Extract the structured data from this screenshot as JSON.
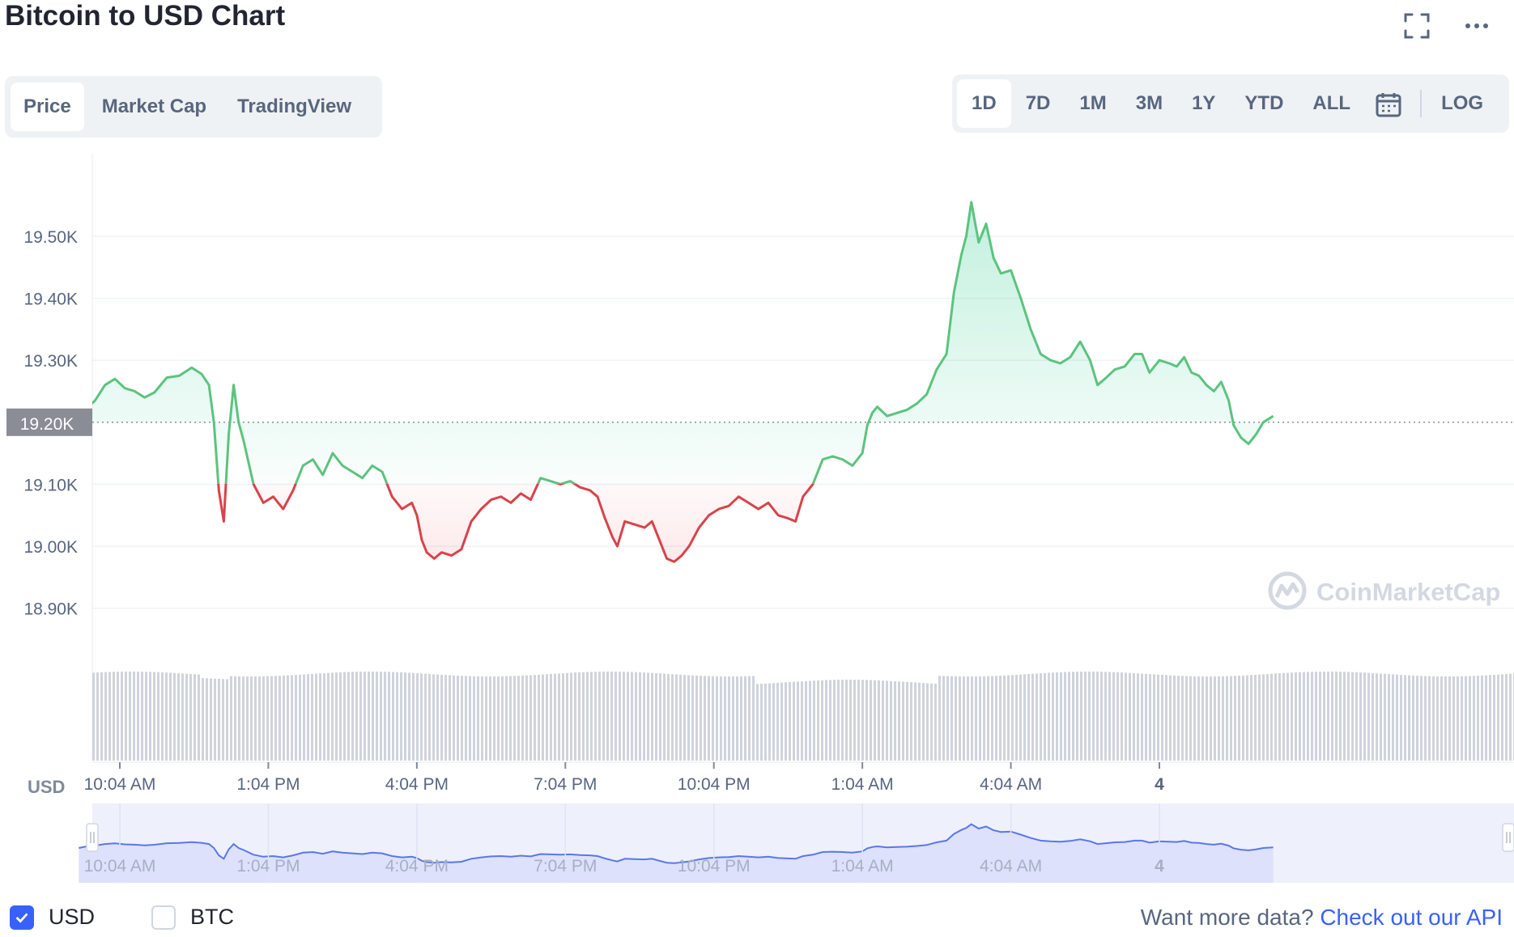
{
  "header": {
    "title": "Bitcoin to USD Chart"
  },
  "icons": {
    "fullscreen": "fullscreen-icon",
    "more": "more-options-icon",
    "calendar": "calendar-icon",
    "check": "check-icon",
    "handle": "range-handle-icon",
    "logo": "coinmarketcap-logo-icon"
  },
  "type_tabs": [
    {
      "label": "Price",
      "active": true
    },
    {
      "label": "Market Cap",
      "active": false
    },
    {
      "label": "TradingView",
      "active": false
    }
  ],
  "range_tabs": [
    {
      "label": "1D",
      "active": true
    },
    {
      "label": "7D",
      "active": false
    },
    {
      "label": "1M",
      "active": false
    },
    {
      "label": "3M",
      "active": false
    },
    {
      "label": "1Y",
      "active": false
    },
    {
      "label": "YTD",
      "active": false
    },
    {
      "label": "ALL",
      "active": false
    }
  ],
  "log_label": "LOG",
  "watermark": "CoinMarketCap",
  "colors": {
    "up": "#16c784",
    "down": "#ea3943",
    "line_up": "#5cc37e",
    "line_down": "#d9434a",
    "accent": "#3861fb",
    "navigator": "#e8ebfd"
  },
  "chart_data": {
    "type": "line",
    "currency_label": "USD",
    "baseline": 19200,
    "baseline_label": "19.20K",
    "ylim": [
      18850,
      19620
    ],
    "yticks": [
      {
        "v": 18900,
        "label": "18.90K"
      },
      {
        "v": 19000,
        "label": "19.00K"
      },
      {
        "v": 19100,
        "label": "19.10K"
      },
      {
        "v": 19200,
        "label": "19.20K"
      },
      {
        "v": 19300,
        "label": "19.30K"
      },
      {
        "v": 19400,
        "label": "19.40K"
      },
      {
        "v": 19500,
        "label": "19.50K"
      }
    ],
    "xticks": [
      {
        "t": 1.0,
        "label": "10:04 AM"
      },
      {
        "t": 4.0,
        "label": "1:04 PM"
      },
      {
        "t": 7.0,
        "label": "4:04 PM"
      },
      {
        "t": 10.0,
        "label": "7:04 PM"
      },
      {
        "t": 13.0,
        "label": "10:04 PM"
      },
      {
        "t": 16.0,
        "label": "1:04 AM"
      },
      {
        "t": 19.0,
        "label": "4:04 AM"
      },
      {
        "t": 22.0,
        "label": "4"
      }
    ],
    "series": [
      {
        "values": [
          [
            0.17,
            19200
          ],
          [
            0.3,
            19220
          ],
          [
            0.5,
            19235
          ],
          [
            0.7,
            19260
          ],
          [
            0.9,
            19270
          ],
          [
            1.1,
            19255
          ],
          [
            1.3,
            19250
          ],
          [
            1.5,
            19240
          ],
          [
            1.7,
            19248
          ],
          [
            1.95,
            19272
          ],
          [
            2.2,
            19275
          ],
          [
            2.45,
            19288
          ],
          [
            2.65,
            19278
          ],
          [
            2.8,
            19260
          ],
          [
            2.9,
            19200
          ],
          [
            3.0,
            19090
          ],
          [
            3.1,
            19040
          ],
          [
            3.2,
            19180
          ],
          [
            3.3,
            19260
          ],
          [
            3.4,
            19200
          ],
          [
            3.5,
            19170
          ],
          [
            3.7,
            19100
          ],
          [
            3.9,
            19070
          ],
          [
            4.1,
            19080
          ],
          [
            4.3,
            19060
          ],
          [
            4.5,
            19090
          ],
          [
            4.7,
            19130
          ],
          [
            4.9,
            19140
          ],
          [
            5.1,
            19115
          ],
          [
            5.3,
            19150
          ],
          [
            5.5,
            19130
          ],
          [
            5.7,
            19120
          ],
          [
            5.9,
            19110
          ],
          [
            6.1,
            19130
          ],
          [
            6.3,
            19120
          ],
          [
            6.5,
            19080
          ],
          [
            6.7,
            19060
          ],
          [
            6.9,
            19070
          ],
          [
            7.0,
            19050
          ],
          [
            7.1,
            19010
          ],
          [
            7.2,
            18990
          ],
          [
            7.35,
            18980
          ],
          [
            7.5,
            18990
          ],
          [
            7.7,
            18985
          ],
          [
            7.9,
            18995
          ],
          [
            8.1,
            19040
          ],
          [
            8.3,
            19060
          ],
          [
            8.5,
            19075
          ],
          [
            8.7,
            19080
          ],
          [
            8.9,
            19070
          ],
          [
            9.1,
            19085
          ],
          [
            9.3,
            19075
          ],
          [
            9.5,
            19110
          ],
          [
            9.7,
            19105
          ],
          [
            9.9,
            19100
          ],
          [
            10.1,
            19105
          ],
          [
            10.3,
            19095
          ],
          [
            10.5,
            19090
          ],
          [
            10.65,
            19080
          ],
          [
            10.8,
            19045
          ],
          [
            10.95,
            19015
          ],
          [
            11.05,
            19000
          ],
          [
            11.2,
            19040
          ],
          [
            11.4,
            19035
          ],
          [
            11.6,
            19030
          ],
          [
            11.75,
            19040
          ],
          [
            11.9,
            19010
          ],
          [
            12.05,
            18980
          ],
          [
            12.2,
            18975
          ],
          [
            12.35,
            18985
          ],
          [
            12.5,
            19000
          ],
          [
            12.7,
            19030
          ],
          [
            12.9,
            19050
          ],
          [
            13.1,
            19060
          ],
          [
            13.3,
            19065
          ],
          [
            13.5,
            19080
          ],
          [
            13.7,
            19070
          ],
          [
            13.9,
            19060
          ],
          [
            14.1,
            19070
          ],
          [
            14.3,
            19050
          ],
          [
            14.5,
            19045
          ],
          [
            14.65,
            19040
          ],
          [
            14.8,
            19080
          ],
          [
            15.0,
            19100
          ],
          [
            15.2,
            19140
          ],
          [
            15.4,
            19145
          ],
          [
            15.6,
            19140
          ],
          [
            15.8,
            19130
          ],
          [
            16.0,
            19150
          ],
          [
            16.1,
            19195
          ],
          [
            16.2,
            19215
          ],
          [
            16.3,
            19225
          ],
          [
            16.5,
            19210
          ],
          [
            16.7,
            19215
          ],
          [
            16.9,
            19220
          ],
          [
            17.1,
            19230
          ],
          [
            17.3,
            19245
          ],
          [
            17.5,
            19285
          ],
          [
            17.7,
            19310
          ],
          [
            17.85,
            19410
          ],
          [
            18.0,
            19470
          ],
          [
            18.1,
            19500
          ],
          [
            18.2,
            19555
          ],
          [
            18.35,
            19490
          ],
          [
            18.5,
            19520
          ],
          [
            18.65,
            19465
          ],
          [
            18.8,
            19440
          ],
          [
            19.0,
            19445
          ],
          [
            19.2,
            19400
          ],
          [
            19.4,
            19350
          ],
          [
            19.6,
            19310
          ],
          [
            19.8,
            19300
          ],
          [
            20.0,
            19295
          ],
          [
            20.2,
            19305
          ],
          [
            20.4,
            19330
          ],
          [
            20.6,
            19300
          ],
          [
            20.75,
            19260
          ],
          [
            20.9,
            19270
          ],
          [
            21.1,
            19285
          ],
          [
            21.3,
            19290
          ],
          [
            21.5,
            19310
          ],
          [
            21.65,
            19310
          ],
          [
            21.8,
            19280
          ],
          [
            22.0,
            19300
          ],
          [
            22.2,
            19295
          ],
          [
            22.35,
            19290
          ],
          [
            22.5,
            19305
          ],
          [
            22.65,
            19280
          ],
          [
            22.8,
            19275
          ],
          [
            22.95,
            19260
          ],
          [
            23.1,
            19250
          ],
          [
            23.25,
            19265
          ],
          [
            23.4,
            19235
          ],
          [
            23.5,
            19195
          ],
          [
            23.65,
            19175
          ],
          [
            23.8,
            19165
          ],
          [
            23.95,
            19180
          ],
          [
            24.1,
            19200
          ],
          [
            24.3,
            19210
          ]
        ]
      }
    ]
  }
}
